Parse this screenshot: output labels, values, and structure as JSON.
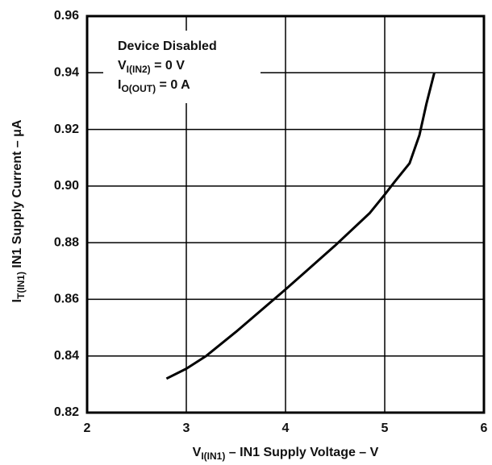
{
  "chart_data": {
    "type": "line",
    "x": [
      2.8,
      3.0,
      3.2,
      3.5,
      4.0,
      4.5,
      4.85,
      5.0,
      5.1,
      5.25,
      5.35,
      5.42,
      5.5
    ],
    "values": [
      0.832,
      0.8355,
      0.84,
      0.8485,
      0.8635,
      0.879,
      0.8905,
      0.897,
      0.9015,
      0.908,
      0.918,
      0.929,
      0.94
    ],
    "color": "#000000",
    "xlim": [
      2,
      6
    ],
    "xticks": [
      2,
      3,
      4,
      5,
      6
    ],
    "ylim": [
      0.82,
      0.96
    ],
    "yticks": [
      0.82,
      0.84,
      0.86,
      0.88,
      {
        "value": 0.9,
        "label": "0.90"
      },
      0.92,
      0.94,
      0.96
    ],
    "grid": true,
    "x_label": {
      "main": "V",
      "sub": "I(IN1)",
      "rest": " – IN1 Supply Voltage – V"
    },
    "y_label": {
      "main": "I",
      "sub": "T(IN1)",
      "rest": "   IN1 Supply Current – μA"
    },
    "annotations": [
      {
        "main": "Device Disabled"
      },
      {
        "main": "V",
        "sub": "I(IN2)",
        "rest": " = 0 V"
      },
      {
        "main": "I",
        "sub": "O(OUT)",
        "rest": " = 0 A"
      }
    ]
  }
}
